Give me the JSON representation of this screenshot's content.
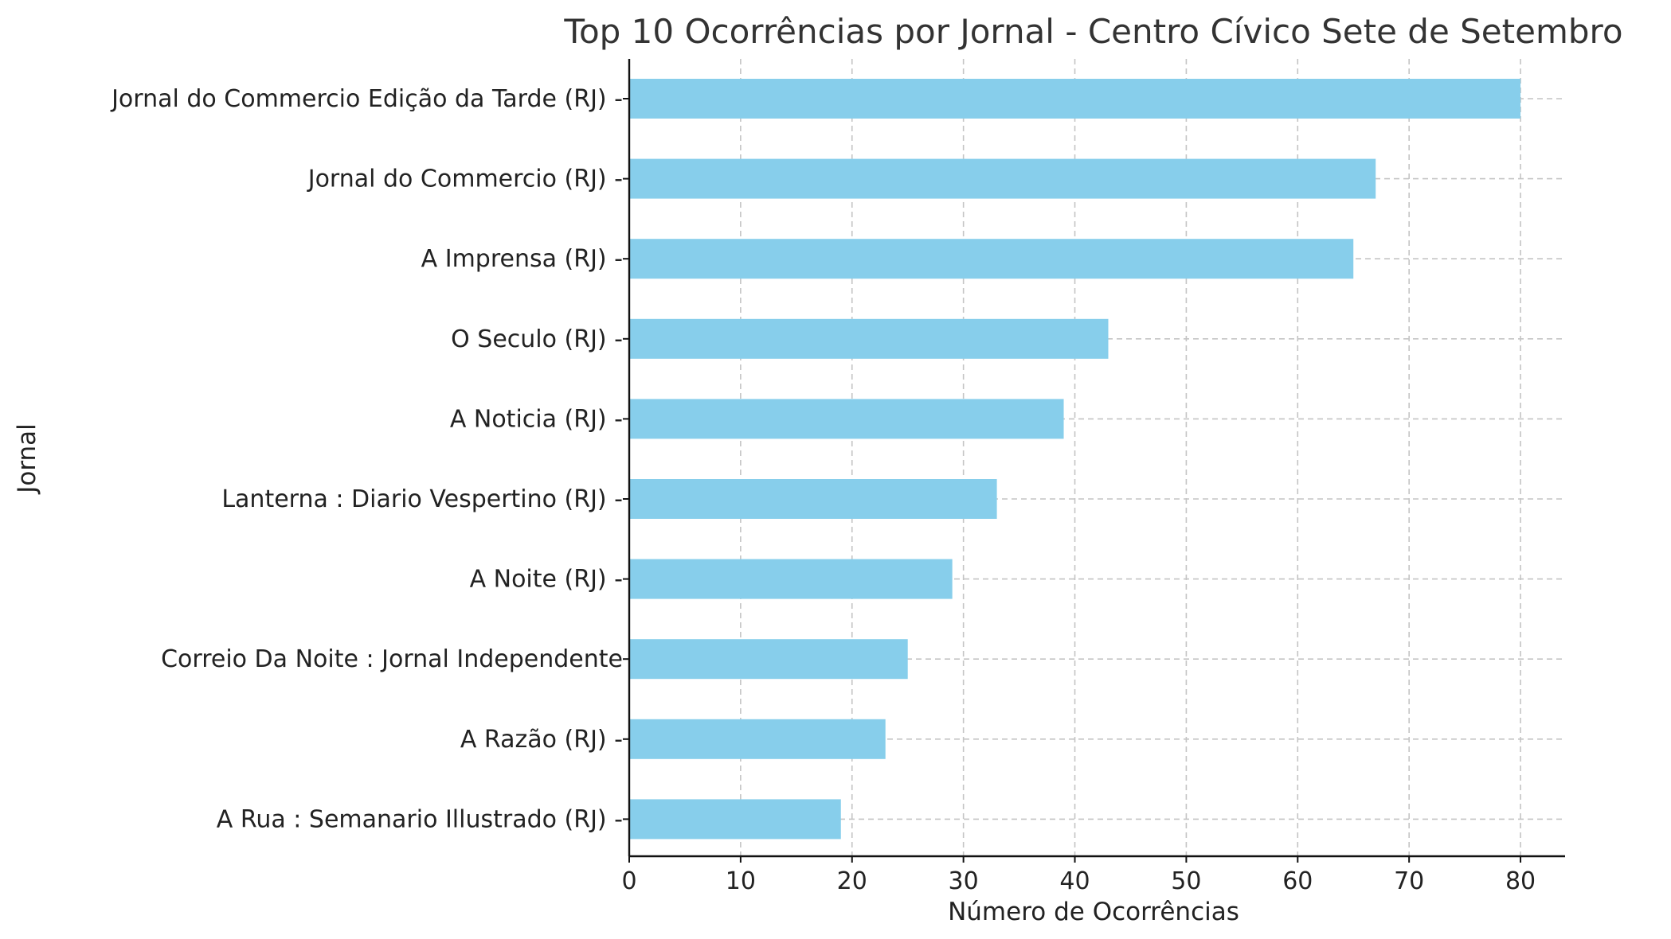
{
  "colors": {
    "bar": "#87CEEB",
    "grid": "#c4c4c4",
    "axis": "#111111",
    "title": "#333333",
    "text": "#222222"
  },
  "chart_data": {
    "type": "bar",
    "orientation": "horizontal",
    "title": "Top 10 Ocorrências por Jornal - Centro Cívico Sete de Setembro",
    "xlabel": "Número de Ocorrências",
    "ylabel": "Jornal",
    "categories": [
      "Jornal do Commercio Edição da Tarde (RJ) -",
      "Jornal do Commercio (RJ) -",
      "A Imprensa (RJ) -",
      "O Seculo (RJ) -",
      "A Noticia (RJ) -",
      "Lanterna : Diario Vespertino (RJ) -",
      "A Noite (RJ) -",
      "Correio Da Noite : Jornal Independente",
      "A Razão (RJ) -",
      "A Rua : Semanario Illustrado (RJ) -"
    ],
    "values": [
      80,
      67,
      65,
      43,
      39,
      33,
      29,
      25,
      23,
      19
    ],
    "xlim": [
      0,
      84
    ],
    "xticks": [
      0,
      10,
      20,
      30,
      40,
      50,
      60,
      70,
      80
    ],
    "grid": true,
    "legend": false
  }
}
